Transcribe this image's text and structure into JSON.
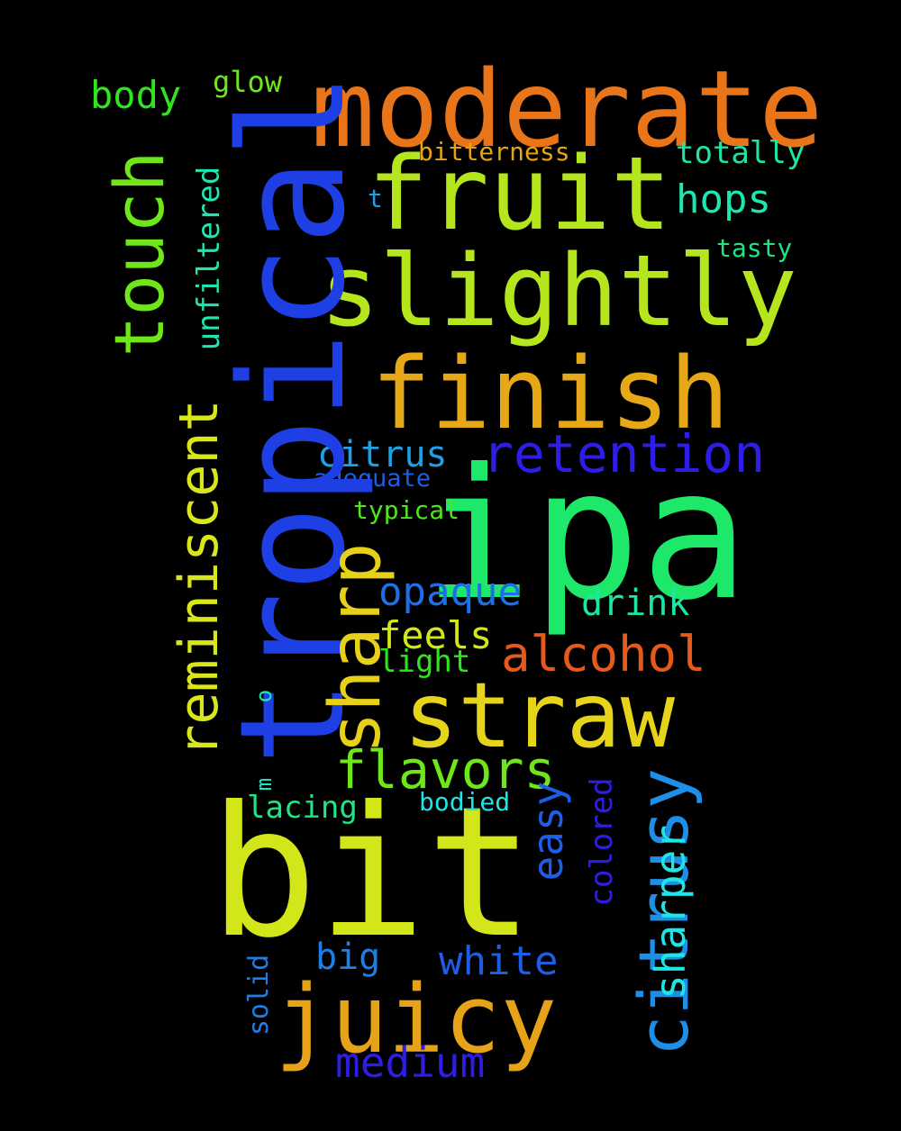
{
  "words": [
    {
      "text": "moderate",
      "color": "#e8751a"
    },
    {
      "text": "tropical",
      "color": "#1d3fe3"
    },
    {
      "text": "fruit",
      "color": "#b5e61d"
    },
    {
      "text": "slightly",
      "color": "#b5e61d"
    },
    {
      "text": "finish",
      "color": "#e6a817"
    },
    {
      "text": "ipa",
      "color": "#1ee86a"
    },
    {
      "text": "bit",
      "color": "#d2e61a"
    },
    {
      "text": "straw",
      "color": "#e6d41a"
    },
    {
      "text": "juicy",
      "color": "#e6a31a"
    },
    {
      "text": "touch",
      "color": "#6ee61a"
    },
    {
      "text": "retention",
      "color": "#2d1ee6"
    },
    {
      "text": "sharp",
      "color": "#e6d01a"
    },
    {
      "text": "reminiscent",
      "color": "#d8e61a"
    },
    {
      "text": "citrusy",
      "color": "#1e8ee6"
    },
    {
      "text": "flavors",
      "color": "#6ee61a"
    },
    {
      "text": "alcohol",
      "color": "#e6591a"
    },
    {
      "text": "body",
      "color": "#2ee61a"
    },
    {
      "text": "glow",
      "color": "#6ee61a"
    },
    {
      "text": "bitterness",
      "color": "#e6a31a"
    },
    {
      "text": "totally",
      "color": "#1ee6a0"
    },
    {
      "text": "hops",
      "color": "#1ee6b0"
    },
    {
      "text": "tasty",
      "color": "#1ee680"
    },
    {
      "text": "t",
      "color": "#1e9ee6"
    },
    {
      "text": "unfiltered",
      "color": "#1ee6b0"
    },
    {
      "text": "citrus",
      "color": "#1ea0e6"
    },
    {
      "text": "adequate",
      "color": "#1e5ee6"
    },
    {
      "text": "typical",
      "color": "#4ee61a"
    },
    {
      "text": "opaque",
      "color": "#1e6ee6"
    },
    {
      "text": "drink",
      "color": "#1ee6a0"
    },
    {
      "text": "feels",
      "color": "#d2e61a"
    },
    {
      "text": "light",
      "color": "#2ee61a"
    },
    {
      "text": "o",
      "color": "#1ee6b0"
    },
    {
      "text": "lacing",
      "color": "#1ee680"
    },
    {
      "text": "m",
      "color": "#1ee6c0"
    },
    {
      "text": "bodied",
      "color": "#1ee6e6"
    },
    {
      "text": "easy",
      "color": "#1e5ee6"
    },
    {
      "text": "colored",
      "color": "#2d1ee6"
    },
    {
      "text": "sharper",
      "color": "#1ee6e6"
    },
    {
      "text": "big",
      "color": "#1e7ee6"
    },
    {
      "text": "white",
      "color": "#1e5ee6"
    },
    {
      "text": "solid",
      "color": "#1e7ee6"
    },
    {
      "text": "medium",
      "color": "#2d1ee6"
    }
  ]
}
